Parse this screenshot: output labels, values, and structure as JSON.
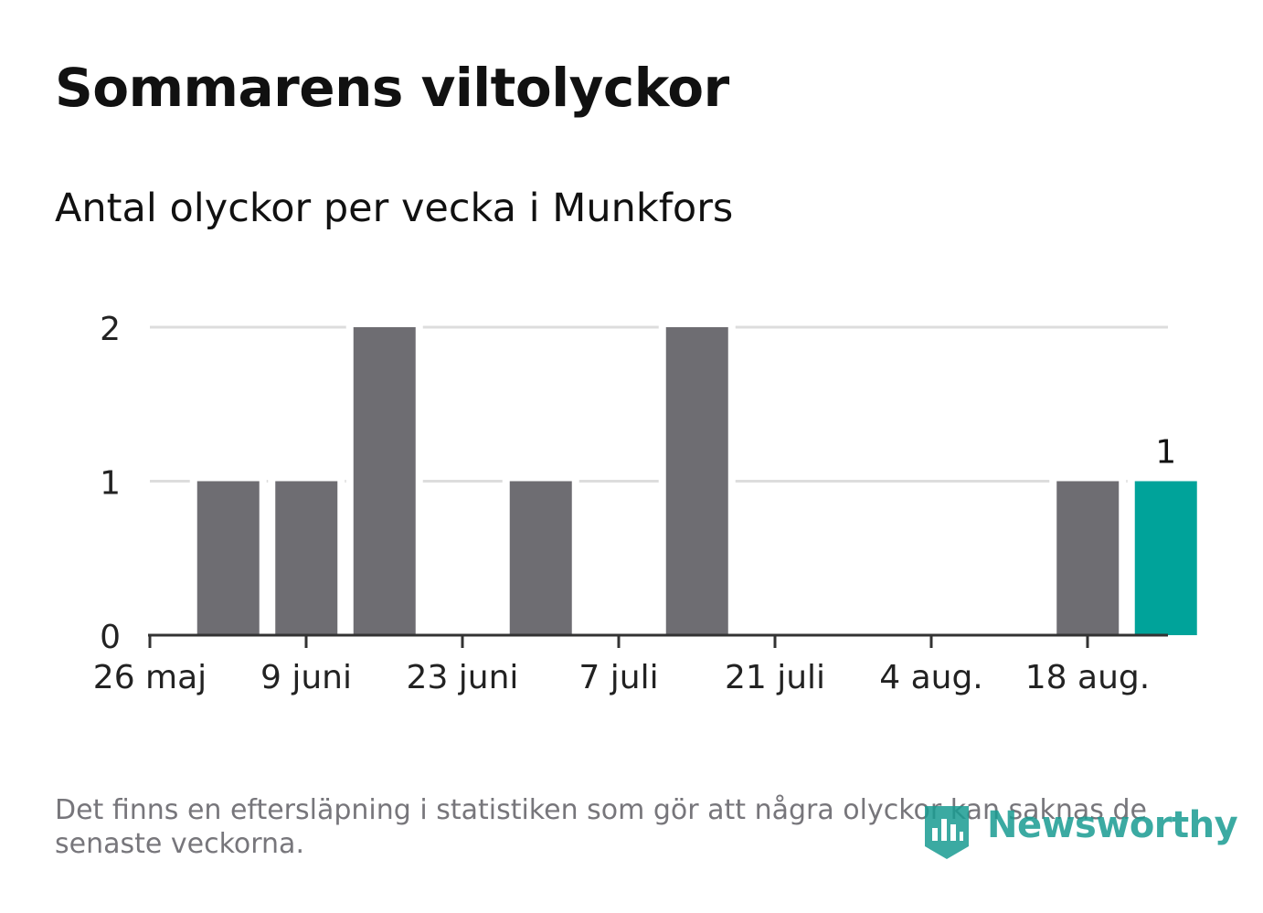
{
  "header": {
    "title": "Sommarens viltolyckor",
    "subtitle": "Antal olyckor per vecka i Munkfors"
  },
  "footer": {
    "note": "Det finns en eftersläpning i statistiken som gör att några olyckor kan saknas de senaste veckorna.",
    "logo_text": "Newsworthy"
  },
  "colors": {
    "bar": "#6e6d72",
    "highlight": "#00a39a",
    "grid": "#dddddd",
    "axis": "#333333"
  },
  "chart_data": {
    "type": "bar",
    "categories": [
      "2024-05-27",
      "2024-06-03",
      "2024-06-10",
      "2024-06-17",
      "2024-06-24",
      "2024-07-01",
      "2024-07-08",
      "2024-07-15",
      "2024-07-22",
      "2024-07-29",
      "2024-08-05",
      "2024-08-12",
      "2024-08-19"
    ],
    "values": [
      1,
      1,
      2,
      0,
      1,
      0,
      2,
      0,
      0,
      0,
      0,
      1,
      1
    ],
    "highlight_index": 12,
    "highlight_label": "1",
    "x_tick_labels": [
      "26 maj",
      "9 juni",
      "23 juni",
      "7 juli",
      "21 juli",
      "4 aug.",
      "18 aug."
    ],
    "y_ticks": [
      0,
      1,
      2
    ],
    "ylim": [
      0,
      2
    ],
    "xlabel": "",
    "ylabel": "",
    "grid": true,
    "legend": false
  }
}
